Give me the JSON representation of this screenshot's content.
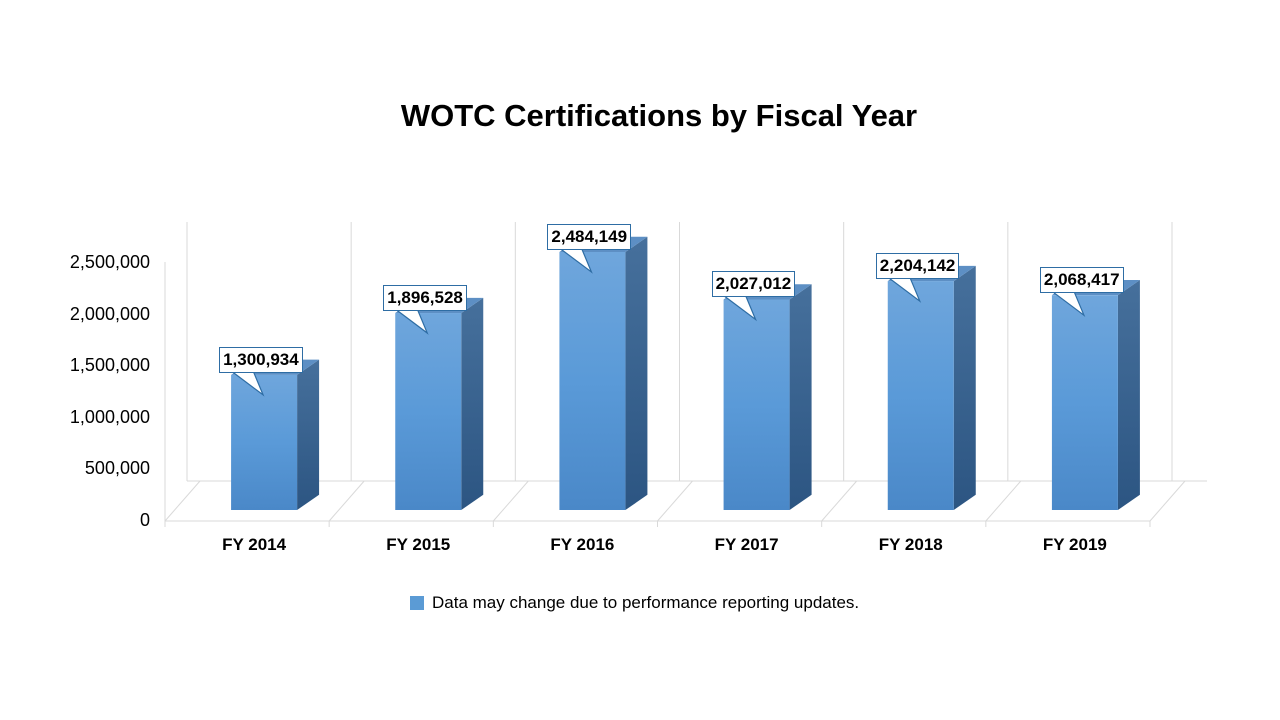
{
  "chart_data": {
    "type": "bar",
    "title": "WOTC Certifications by Fiscal Year",
    "categories": [
      "FY 2014",
      "FY 2015",
      "FY 2016",
      "FY 2017",
      "FY 2018",
      "FY 2019"
    ],
    "series": [
      {
        "name": "Data may change due to performance reporting updates.",
        "values": [
          1300934,
          1896528,
          2484149,
          2027012,
          2204142,
          2068417
        ],
        "labels": [
          "1,300,934",
          "1,896,528",
          "2,484,149",
          "2,027,012",
          "2,204,142",
          "2,068,417"
        ],
        "color": "#5b9bd5"
      }
    ],
    "xlabel": "",
    "ylabel": "",
    "ylim": [
      0,
      2500000
    ],
    "yticks": [
      "0",
      "500,000",
      "1,000,000",
      "1,500,000",
      "2,000,000",
      "2,500,000"
    ],
    "grid": true,
    "style": "3d-column",
    "legend_position": "bottom"
  },
  "title": "WOTC Certifications by Fiscal Year",
  "legend": {
    "label": "Data may change due to performance reporting updates."
  }
}
